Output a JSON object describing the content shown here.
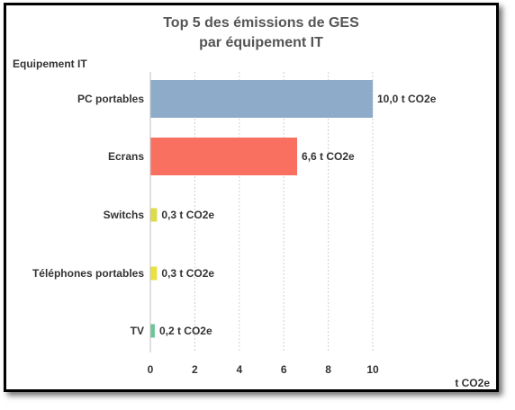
{
  "chart_data": {
    "type": "bar",
    "orientation": "horizontal",
    "title": "Top 5 des émissions de GES\npar équipement IT",
    "ylabel": "Equipement IT",
    "xlabel": "t CO2e",
    "categories": [
      "PC portables",
      "Ecrans",
      "Switchs",
      "Téléphones portables",
      "TV"
    ],
    "values": [
      10.0,
      6.6,
      0.3,
      0.3,
      0.2
    ],
    "data_labels": [
      "10,0 t CO2e",
      "6,6 t CO2e",
      "0,3 t CO2e",
      "0,3 t CO2e",
      "0,2 t CO2e"
    ],
    "colors": [
      "#8eacc9",
      "#fa7060",
      "#dddb4a",
      "#eae140",
      "#6dc49a"
    ],
    "xlim": [
      0,
      10
    ],
    "xticks": [
      0,
      2,
      4,
      6,
      8,
      10
    ],
    "xtick_labels": [
      "0",
      "2",
      "4",
      "6",
      "8",
      "10"
    ],
    "grid": "vertical dashed",
    "legend": "none"
  }
}
